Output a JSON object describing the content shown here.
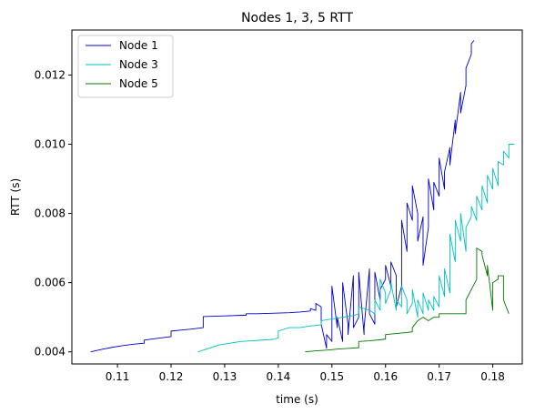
{
  "chart_data": {
    "type": "line",
    "title": "Nodes 1, 3, 5 RTT",
    "xlabel": "time (s)",
    "ylabel": "RTT (s)",
    "xlim": [
      0.1015,
      0.1855
    ],
    "ylim": [
      0.00365,
      0.0133
    ],
    "xticks": [
      0.11,
      0.12,
      0.13,
      0.14,
      0.15,
      0.16,
      0.17,
      0.18
    ],
    "xtick_labels": [
      "0.11",
      "0.12",
      "0.13",
      "0.14",
      "0.15",
      "0.16",
      "0.17",
      "0.18"
    ],
    "yticks": [
      0.004,
      0.006,
      0.008,
      0.01,
      0.012
    ],
    "ytick_labels": [
      "0.004",
      "0.006",
      "0.008",
      "0.010",
      "0.012"
    ],
    "grid": false,
    "legend": "top-left",
    "series": [
      {
        "name": "Node 1",
        "color": "#0000cc",
        "x": [
          0.105,
          0.107,
          0.109,
          0.111,
          0.113,
          0.115,
          0.115,
          0.117,
          0.119,
          0.12,
          0.12,
          0.122,
          0.124,
          0.126,
          0.126,
          0.128,
          0.13,
          0.132,
          0.134,
          0.134,
          0.136,
          0.138,
          0.14,
          0.142,
          0.144,
          0.146,
          0.146,
          0.147,
          0.147,
          0.148,
          0.148,
          0.149,
          0.149,
          0.15,
          0.15,
          0.151,
          0.151,
          0.152,
          0.152,
          0.153,
          0.153,
          0.154,
          0.154,
          0.155,
          0.155,
          0.156,
          0.156,
          0.157,
          0.157,
          0.158,
          0.158,
          0.159,
          0.159,
          0.16,
          0.16,
          0.161,
          0.161,
          0.162,
          0.162,
          0.163,
          0.163,
          0.164,
          0.164,
          0.165,
          0.165,
          0.166,
          0.166,
          0.167,
          0.167,
          0.168,
          0.168,
          0.169,
          0.169,
          0.17,
          0.17,
          0.171,
          0.171,
          0.172,
          0.172,
          0.173,
          0.173,
          0.174,
          0.174,
          0.175,
          0.175,
          0.176,
          0.176,
          0.1765
        ],
        "y": [
          0.004,
          0.00407,
          0.00413,
          0.00418,
          0.00422,
          0.00425,
          0.00434,
          0.00438,
          0.00442,
          0.00444,
          0.0046,
          0.00463,
          0.00466,
          0.0047,
          0.00502,
          0.00503,
          0.00504,
          0.00505,
          0.00506,
          0.0051,
          0.0051,
          0.00511,
          0.00512,
          0.00513,
          0.00515,
          0.00518,
          0.00525,
          0.0052,
          0.0054,
          0.0053,
          0.0048,
          0.0041,
          0.0045,
          0.0043,
          0.0059,
          0.0047,
          0.005,
          0.0043,
          0.006,
          0.0048,
          0.0045,
          0.0062,
          0.0047,
          0.005,
          0.0063,
          0.0045,
          0.0047,
          0.0064,
          0.0051,
          0.0048,
          0.0063,
          0.0055,
          0.0058,
          0.0061,
          0.0065,
          0.0059,
          0.0066,
          0.0062,
          0.0053,
          0.0059,
          0.0078,
          0.0069,
          0.0083,
          0.0078,
          0.0088,
          0.008,
          0.0072,
          0.0079,
          0.0065,
          0.0076,
          0.009,
          0.0081,
          0.0089,
          0.0085,
          0.0096,
          0.0087,
          0.0092,
          0.0099,
          0.0094,
          0.0107,
          0.0103,
          0.0115,
          0.0109,
          0.0117,
          0.0122,
          0.0126,
          0.0129,
          0.013
        ]
      },
      {
        "name": "Node 3",
        "color": "#00bfbf",
        "x": [
          0.125,
          0.127,
          0.129,
          0.131,
          0.133,
          0.135,
          0.137,
          0.139,
          0.14,
          0.14,
          0.142,
          0.144,
          0.146,
          0.148,
          0.148,
          0.15,
          0.152,
          0.154,
          0.155,
          0.155,
          0.157,
          0.158,
          0.158,
          0.159,
          0.159,
          0.16,
          0.16,
          0.161,
          0.161,
          0.162,
          0.162,
          0.163,
          0.163,
          0.164,
          0.164,
          0.165,
          0.165,
          0.166,
          0.166,
          0.167,
          0.167,
          0.168,
          0.168,
          0.169,
          0.169,
          0.17,
          0.17,
          0.171,
          0.171,
          0.172,
          0.172,
          0.173,
          0.173,
          0.174,
          0.174,
          0.175,
          0.175,
          0.176,
          0.176,
          0.177,
          0.177,
          0.178,
          0.178,
          0.179,
          0.179,
          0.18,
          0.18,
          0.181,
          0.181,
          0.182,
          0.182,
          0.183,
          0.183,
          0.184
        ],
        "y": [
          0.004,
          0.0041,
          0.0042,
          0.00425,
          0.0043,
          0.00432,
          0.00434,
          0.00436,
          0.0044,
          0.0046,
          0.0047,
          0.0047,
          0.00475,
          0.00478,
          0.0049,
          0.00495,
          0.005,
          0.00505,
          0.0051,
          0.0053,
          0.0052,
          0.0051,
          0.0055,
          0.0052,
          0.0061,
          0.0057,
          0.0054,
          0.0058,
          0.006,
          0.0052,
          0.0055,
          0.0053,
          0.0059,
          0.0055,
          0.0051,
          0.0054,
          0.0058,
          0.005,
          0.0055,
          0.0051,
          0.0057,
          0.0052,
          0.0055,
          0.0052,
          0.0056,
          0.0053,
          0.0062,
          0.0056,
          0.0064,
          0.0057,
          0.0074,
          0.0066,
          0.0078,
          0.0072,
          0.008,
          0.0069,
          0.0076,
          0.0079,
          0.0082,
          0.0078,
          0.0085,
          0.0081,
          0.0088,
          0.0083,
          0.0091,
          0.0087,
          0.0093,
          0.0088,
          0.0095,
          0.0094,
          0.0098,
          0.0096,
          0.01,
          0.01
        ]
      },
      {
        "name": "Node 5",
        "color": "#007700",
        "x": [
          0.145,
          0.147,
          0.149,
          0.151,
          0.153,
          0.155,
          0.155,
          0.157,
          0.159,
          0.16,
          0.16,
          0.162,
          0.164,
          0.165,
          0.165,
          0.166,
          0.167,
          0.168,
          0.169,
          0.17,
          0.17,
          0.172,
          0.174,
          0.175,
          0.175,
          0.176,
          0.177,
          0.177,
          0.178,
          0.178,
          0.179,
          0.179,
          0.18,
          0.18,
          0.181,
          0.181,
          0.182,
          0.182,
          0.183
        ],
        "y": [
          0.004,
          0.00403,
          0.00405,
          0.00408,
          0.0041,
          0.00412,
          0.0043,
          0.00432,
          0.00435,
          0.00437,
          0.0045,
          0.00453,
          0.00456,
          0.00458,
          0.0047,
          0.0049,
          0.005,
          0.0049,
          0.005,
          0.005,
          0.0051,
          0.0051,
          0.0051,
          0.0051,
          0.0055,
          0.0058,
          0.0061,
          0.007,
          0.0069,
          0.0068,
          0.0062,
          0.0065,
          0.0052,
          0.006,
          0.0061,
          0.0062,
          0.0062,
          0.0055,
          0.0051
        ]
      }
    ]
  }
}
